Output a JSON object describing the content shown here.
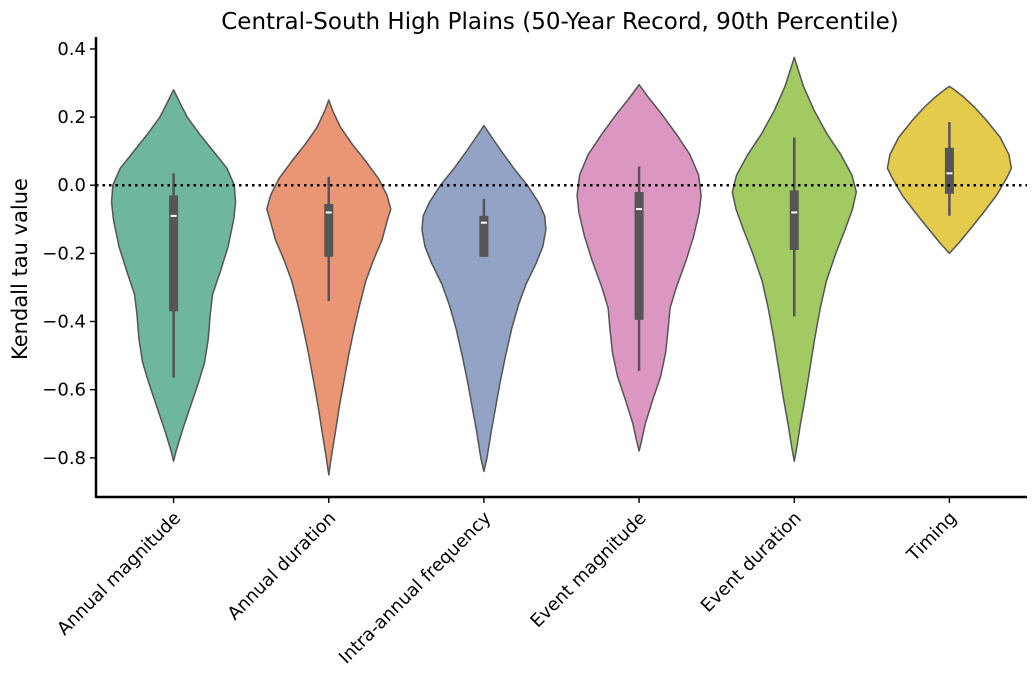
{
  "chart_data": {
    "type": "violin",
    "title": "Central-South High Plains (50-Year Record, 90th Percentile)",
    "xlabel": "",
    "ylabel": "Kendall tau value",
    "ylim": [
      -0.915,
      0.435
    ],
    "yticks": [
      0.4,
      0.2,
      0.0,
      -0.2,
      -0.4,
      -0.6,
      -0.8
    ],
    "ytick_labels": [
      "0.4",
      "0.2",
      "0.0",
      "−0.2",
      "−0.4",
      "−0.6",
      "−0.8"
    ],
    "reference_line": {
      "y": 0.0,
      "style": "dotted",
      "color": "#000000"
    },
    "grid": false,
    "categories": [
      "Annual magnitude",
      "Annual duration",
      "Intra-annual frequency",
      "Event magnitude",
      "Event duration",
      "Timing"
    ],
    "colors": [
      "#6fb69f",
      "#ea9675",
      "#93a3c5",
      "#db97c1",
      "#a1ca63",
      "#e5cb4c"
    ],
    "series": [
      {
        "category": "Annual magnitude",
        "min": -0.81,
        "max": 0.28,
        "median": -0.09,
        "q1": -0.37,
        "q3": -0.03,
        "whisker_low": -0.565,
        "whisker_high": 0.035,
        "density": [
          [
            -0.81,
            0.0
          ],
          [
            -0.78,
            0.04
          ],
          [
            -0.72,
            0.14
          ],
          [
            -0.65,
            0.27
          ],
          [
            -0.58,
            0.4
          ],
          [
            -0.52,
            0.5
          ],
          [
            -0.45,
            0.56
          ],
          [
            -0.38,
            0.59
          ],
          [
            -0.32,
            0.63
          ],
          [
            -0.25,
            0.76
          ],
          [
            -0.18,
            0.88
          ],
          [
            -0.1,
            0.97
          ],
          [
            -0.05,
            1.0
          ],
          [
            0.0,
            0.98
          ],
          [
            0.05,
            0.86
          ],
          [
            0.1,
            0.64
          ],
          [
            0.15,
            0.42
          ],
          [
            0.2,
            0.22
          ],
          [
            0.25,
            0.08
          ],
          [
            0.28,
            0.0
          ]
        ]
      },
      {
        "category": "Annual duration",
        "min": -0.85,
        "max": 0.25,
        "median": -0.08,
        "q1": -0.21,
        "q3": -0.055,
        "whisker_low": -0.34,
        "whisker_high": 0.025,
        "density": [
          [
            -0.85,
            0.0
          ],
          [
            -0.8,
            0.04
          ],
          [
            -0.72,
            0.11
          ],
          [
            -0.65,
            0.17
          ],
          [
            -0.58,
            0.24
          ],
          [
            -0.5,
            0.32
          ],
          [
            -0.42,
            0.41
          ],
          [
            -0.35,
            0.5
          ],
          [
            -0.28,
            0.6
          ],
          [
            -0.22,
            0.72
          ],
          [
            -0.16,
            0.86
          ],
          [
            -0.1,
            0.95
          ],
          [
            -0.07,
            1.0
          ],
          [
            -0.03,
            0.94
          ],
          [
            0.02,
            0.8
          ],
          [
            0.07,
            0.6
          ],
          [
            0.12,
            0.38
          ],
          [
            0.17,
            0.19
          ],
          [
            0.22,
            0.06
          ],
          [
            0.25,
            0.0
          ]
        ]
      },
      {
        "category": "Intra-annual frequency",
        "min": -0.84,
        "max": 0.175,
        "median": -0.11,
        "q1": -0.21,
        "q3": -0.09,
        "whisker_low": -0.21,
        "whisker_high": -0.04,
        "density": [
          [
            -0.84,
            0.0
          ],
          [
            -0.8,
            0.05
          ],
          [
            -0.72,
            0.12
          ],
          [
            -0.65,
            0.19
          ],
          [
            -0.58,
            0.26
          ],
          [
            -0.5,
            0.35
          ],
          [
            -0.42,
            0.45
          ],
          [
            -0.35,
            0.56
          ],
          [
            -0.29,
            0.68
          ],
          [
            -0.23,
            0.84
          ],
          [
            -0.18,
            0.95
          ],
          [
            -0.13,
            1.0
          ],
          [
            -0.09,
            0.98
          ],
          [
            -0.05,
            0.88
          ],
          [
            0.0,
            0.7
          ],
          [
            0.05,
            0.48
          ],
          [
            0.1,
            0.28
          ],
          [
            0.14,
            0.13
          ],
          [
            0.175,
            0.0
          ]
        ]
      },
      {
        "category": "Event magnitude",
        "min": -0.78,
        "max": 0.295,
        "median": -0.07,
        "q1": -0.395,
        "q3": -0.02,
        "whisker_low": -0.545,
        "whisker_high": 0.055,
        "density": [
          [
            -0.78,
            0.0
          ],
          [
            -0.75,
            0.04
          ],
          [
            -0.7,
            0.1
          ],
          [
            -0.63,
            0.22
          ],
          [
            -0.56,
            0.35
          ],
          [
            -0.49,
            0.43
          ],
          [
            -0.42,
            0.47
          ],
          [
            -0.36,
            0.5
          ],
          [
            -0.3,
            0.6
          ],
          [
            -0.22,
            0.76
          ],
          [
            -0.15,
            0.88
          ],
          [
            -0.08,
            0.97
          ],
          [
            -0.03,
            1.0
          ],
          [
            0.03,
            0.96
          ],
          [
            0.09,
            0.82
          ],
          [
            0.15,
            0.6
          ],
          [
            0.21,
            0.36
          ],
          [
            0.26,
            0.14
          ],
          [
            0.295,
            0.0
          ]
        ]
      },
      {
        "category": "Event duration",
        "min": -0.81,
        "max": 0.375,
        "median": -0.08,
        "q1": -0.19,
        "q3": -0.015,
        "whisker_low": -0.385,
        "whisker_high": 0.14,
        "density": [
          [
            -0.81,
            0.0
          ],
          [
            -0.77,
            0.04
          ],
          [
            -0.7,
            0.1
          ],
          [
            -0.62,
            0.18
          ],
          [
            -0.54,
            0.25
          ],
          [
            -0.45,
            0.33
          ],
          [
            -0.36,
            0.42
          ],
          [
            -0.28,
            0.52
          ],
          [
            -0.2,
            0.67
          ],
          [
            -0.13,
            0.82
          ],
          [
            -0.07,
            0.94
          ],
          [
            -0.02,
            1.0
          ],
          [
            0.03,
            0.93
          ],
          [
            0.09,
            0.75
          ],
          [
            0.15,
            0.53
          ],
          [
            0.22,
            0.32
          ],
          [
            0.29,
            0.15
          ],
          [
            0.34,
            0.06
          ],
          [
            0.375,
            0.0
          ]
        ]
      },
      {
        "category": "Timing",
        "min": -0.2,
        "max": 0.29,
        "median": 0.035,
        "q1": -0.025,
        "q3": 0.11,
        "whisker_low": -0.09,
        "whisker_high": 0.185,
        "density": [
          [
            -0.2,
            0.0
          ],
          [
            -0.17,
            0.15
          ],
          [
            -0.13,
            0.33
          ],
          [
            -0.08,
            0.55
          ],
          [
            -0.03,
            0.76
          ],
          [
            0.02,
            0.92
          ],
          [
            0.05,
            1.0
          ],
          [
            0.09,
            0.96
          ],
          [
            0.14,
            0.82
          ],
          [
            0.19,
            0.6
          ],
          [
            0.23,
            0.4
          ],
          [
            0.26,
            0.22
          ],
          [
            0.28,
            0.08
          ],
          [
            0.29,
            0.0
          ]
        ]
      }
    ]
  }
}
